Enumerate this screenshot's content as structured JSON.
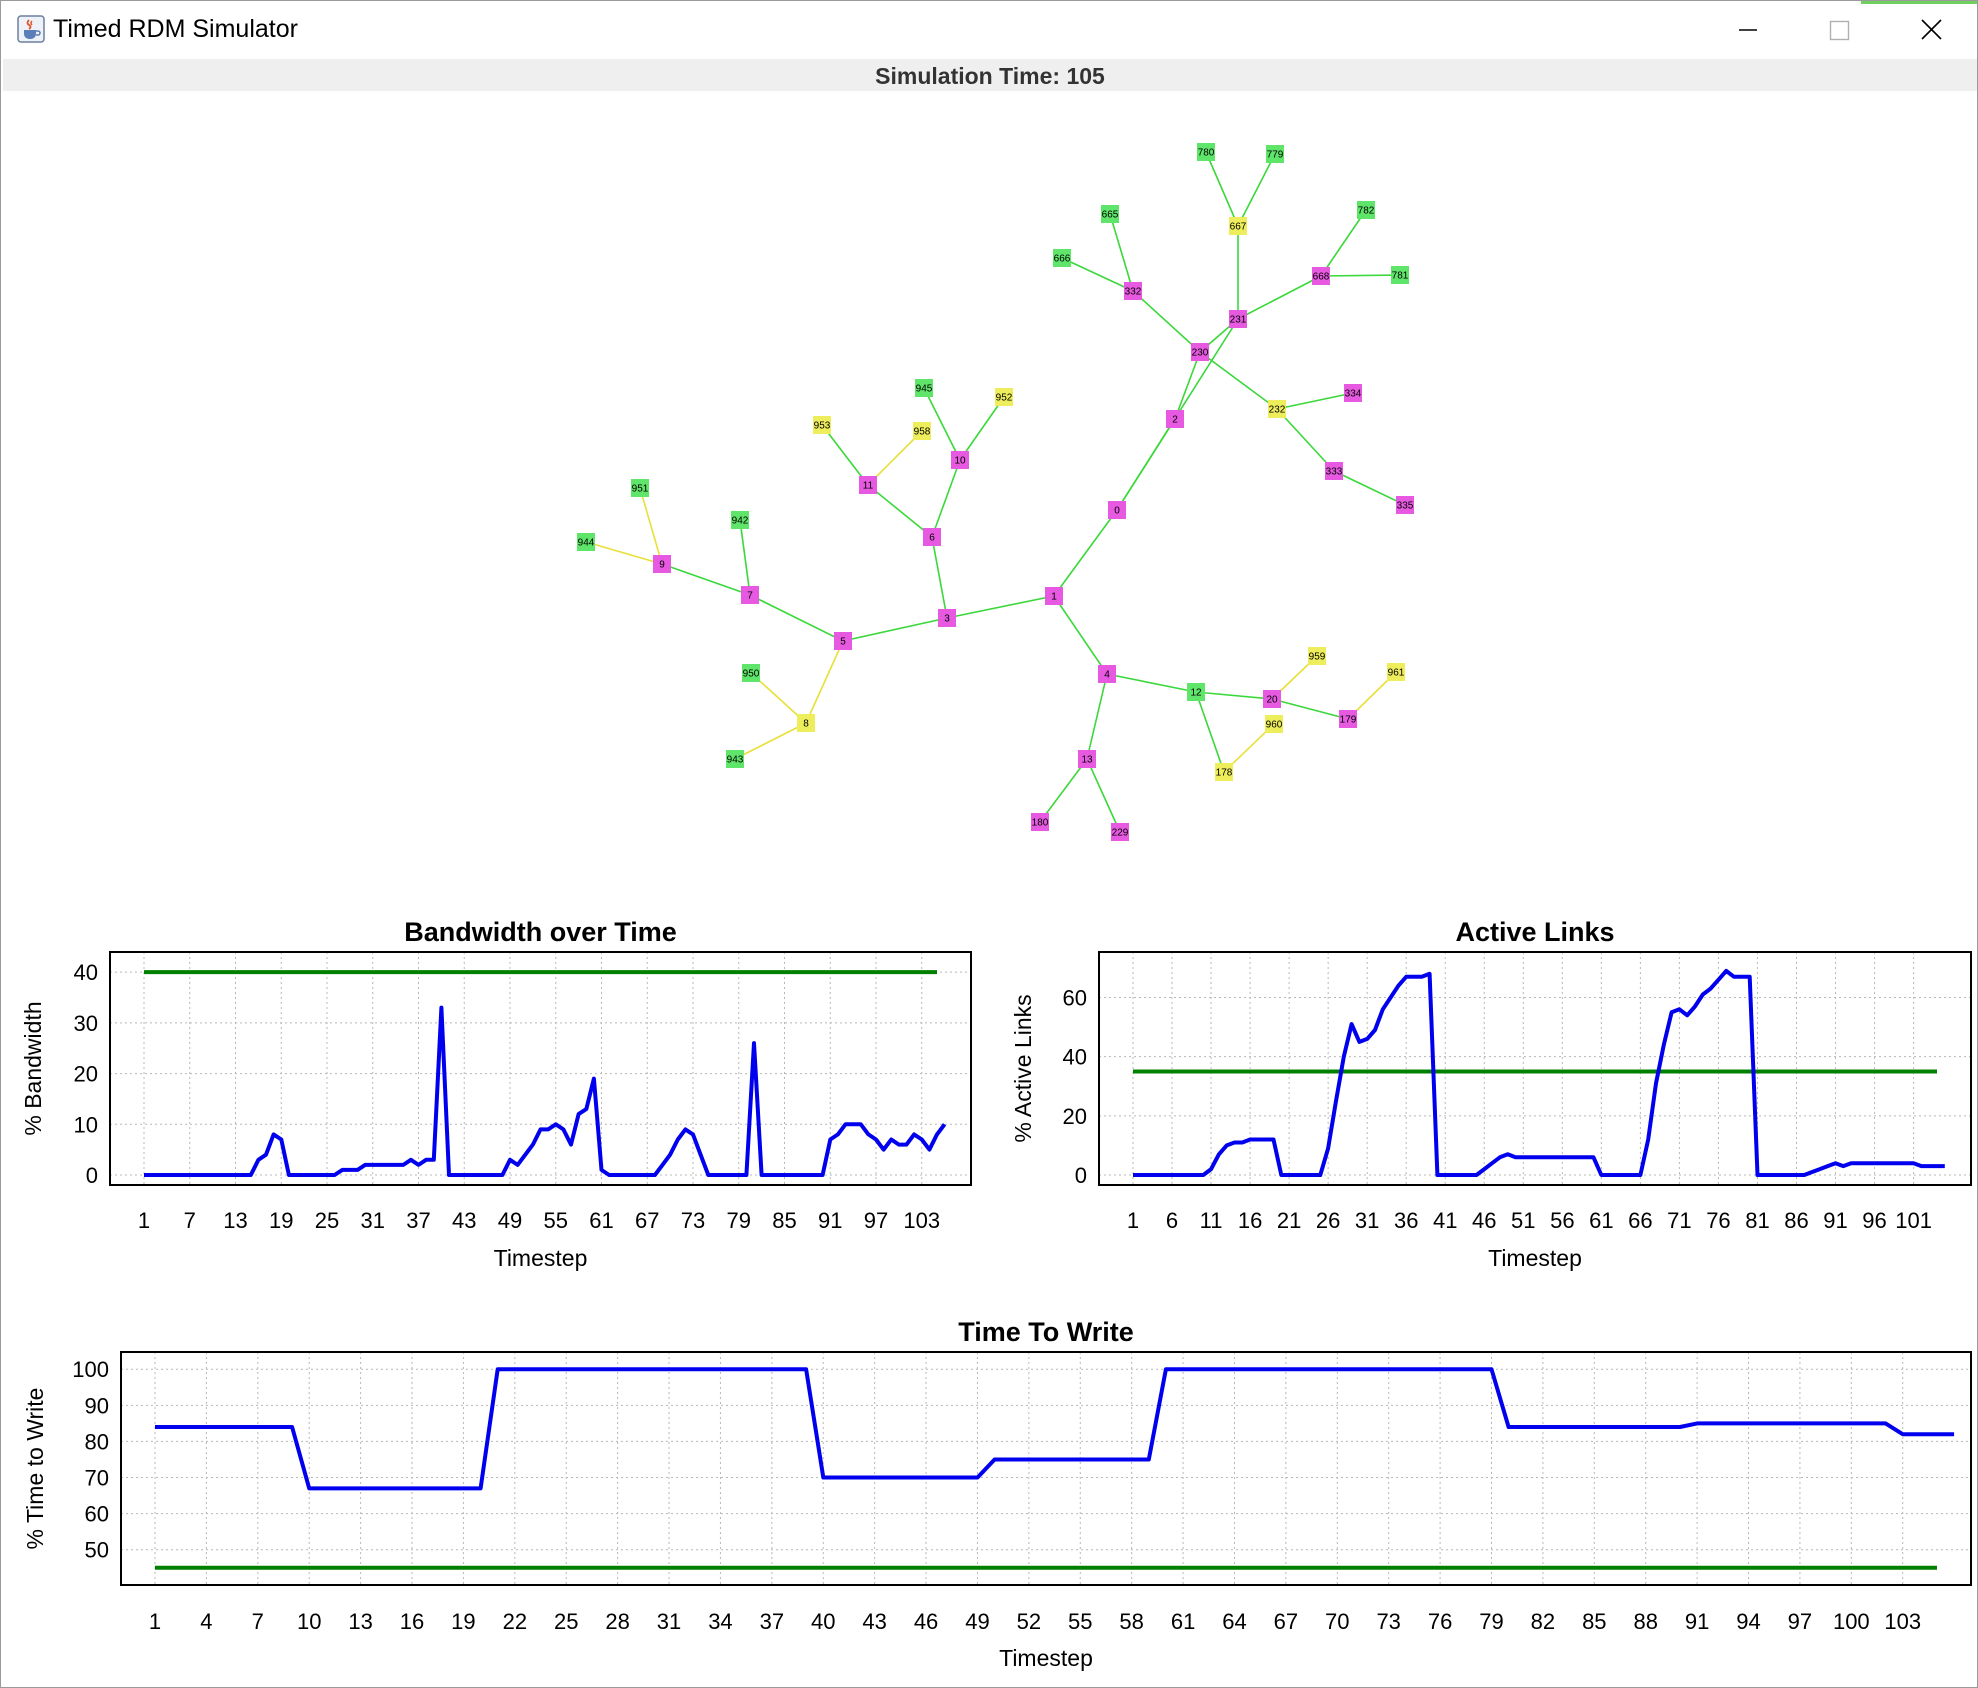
{
  "window": {
    "title": "Timed RDM Simulator",
    "status": "Simulation Time: 105",
    "icon": "java-cup-icon",
    "controls": [
      "minimize-icon",
      "maximize-icon",
      "close-icon"
    ]
  },
  "colors": {
    "node_magenta": "#e659e0",
    "node_green": "#5fe56a",
    "node_yellow": "#eeee5c",
    "edge_green": "#3ad83a",
    "edge_yellow": "#e8e03a",
    "series_blue": "#0000ee",
    "threshold_green": "#008000"
  },
  "network": {
    "nodes": [
      {
        "id": "780",
        "color": "green"
      },
      {
        "id": "779",
        "color": "green"
      },
      {
        "id": "667",
        "color": "yellow"
      },
      {
        "id": "665",
        "color": "green"
      },
      {
        "id": "782",
        "color": "green"
      },
      {
        "id": "666",
        "color": "green"
      },
      {
        "id": "332",
        "color": "magenta"
      },
      {
        "id": "668",
        "color": "magenta"
      },
      {
        "id": "781",
        "color": "green"
      },
      {
        "id": "231",
        "color": "magenta"
      },
      {
        "id": "230",
        "color": "magenta"
      },
      {
        "id": "945",
        "color": "green"
      },
      {
        "id": "952",
        "color": "yellow"
      },
      {
        "id": "232",
        "color": "yellow"
      },
      {
        "id": "334",
        "color": "magenta"
      },
      {
        "id": "953",
        "color": "yellow"
      },
      {
        "id": "958",
        "color": "yellow"
      },
      {
        "id": "2",
        "color": "magenta"
      },
      {
        "id": "10",
        "color": "magenta"
      },
      {
        "id": "333",
        "color": "magenta"
      },
      {
        "id": "951",
        "color": "green"
      },
      {
        "id": "11",
        "color": "magenta"
      },
      {
        "id": "335",
        "color": "magenta"
      },
      {
        "id": "0",
        "color": "magenta"
      },
      {
        "id": "942",
        "color": "green"
      },
      {
        "id": "944",
        "color": "green"
      },
      {
        "id": "6",
        "color": "magenta"
      },
      {
        "id": "9",
        "color": "magenta"
      },
      {
        "id": "7",
        "color": "magenta"
      },
      {
        "id": "1",
        "color": "magenta"
      },
      {
        "id": "3",
        "color": "magenta"
      },
      {
        "id": "5",
        "color": "magenta"
      },
      {
        "id": "959",
        "color": "yellow"
      },
      {
        "id": "950",
        "color": "green"
      },
      {
        "id": "961",
        "color": "yellow"
      },
      {
        "id": "4",
        "color": "magenta"
      },
      {
        "id": "12",
        "color": "green"
      },
      {
        "id": "20",
        "color": "magenta"
      },
      {
        "id": "960",
        "color": "yellow"
      },
      {
        "id": "179",
        "color": "magenta"
      },
      {
        "id": "8",
        "color": "yellow"
      },
      {
        "id": "943",
        "color": "green"
      },
      {
        "id": "13",
        "color": "magenta"
      },
      {
        "id": "178",
        "color": "yellow"
      },
      {
        "id": "180",
        "color": "magenta"
      },
      {
        "id": "229",
        "color": "magenta"
      }
    ],
    "edges": [
      {
        "from": "780",
        "to": "667",
        "color": "green"
      },
      {
        "from": "779",
        "to": "667",
        "color": "green"
      },
      {
        "from": "667",
        "to": "231",
        "color": "green"
      },
      {
        "from": "665",
        "to": "332",
        "color": "green"
      },
      {
        "from": "666",
        "to": "332",
        "color": "green"
      },
      {
        "from": "332",
        "to": "230",
        "color": "green"
      },
      {
        "from": "782",
        "to": "668",
        "color": "green"
      },
      {
        "from": "668",
        "to": "781",
        "color": "green"
      },
      {
        "from": "668",
        "to": "231",
        "color": "green"
      },
      {
        "from": "231",
        "to": "230",
        "color": "green"
      },
      {
        "from": "230",
        "to": "2",
        "color": "green"
      },
      {
        "from": "230",
        "to": "232",
        "color": "green"
      },
      {
        "from": "231",
        "to": "0",
        "color": "green"
      },
      {
        "from": "232",
        "to": "334",
        "color": "green"
      },
      {
        "from": "232",
        "to": "333",
        "color": "green"
      },
      {
        "from": "333",
        "to": "335",
        "color": "green"
      },
      {
        "from": "2",
        "to": "0",
        "color": "green"
      },
      {
        "from": "0",
        "to": "1",
        "color": "green"
      },
      {
        "from": "945",
        "to": "10",
        "color": "green"
      },
      {
        "from": "952",
        "to": "10",
        "color": "green"
      },
      {
        "from": "10",
        "to": "6",
        "color": "green"
      },
      {
        "from": "953",
        "to": "11",
        "color": "green"
      },
      {
        "from": "958",
        "to": "11",
        "color": "yellow"
      },
      {
        "from": "11",
        "to": "6",
        "color": "green"
      },
      {
        "from": "6",
        "to": "3",
        "color": "green"
      },
      {
        "from": "3",
        "to": "1",
        "color": "green"
      },
      {
        "from": "3",
        "to": "5",
        "color": "green"
      },
      {
        "from": "951",
        "to": "9",
        "color": "yellow"
      },
      {
        "from": "944",
        "to": "9",
        "color": "yellow"
      },
      {
        "from": "9",
        "to": "7",
        "color": "green"
      },
      {
        "from": "942",
        "to": "7",
        "color": "green"
      },
      {
        "from": "7",
        "to": "5",
        "color": "green"
      },
      {
        "from": "5",
        "to": "8",
        "color": "yellow"
      },
      {
        "from": "950",
        "to": "8",
        "color": "yellow"
      },
      {
        "from": "943",
        "to": "8",
        "color": "yellow"
      },
      {
        "from": "1",
        "to": "4",
        "color": "green"
      },
      {
        "from": "4",
        "to": "12",
        "color": "green"
      },
      {
        "from": "4",
        "to": "13",
        "color": "green"
      },
      {
        "from": "13",
        "to": "180",
        "color": "green"
      },
      {
        "from": "13",
        "to": "229",
        "color": "green"
      },
      {
        "from": "12",
        "to": "20",
        "color": "green"
      },
      {
        "from": "12",
        "to": "178",
        "color": "green"
      },
      {
        "from": "178",
        "to": "960",
        "color": "yellow"
      },
      {
        "from": "20",
        "to": "959",
        "color": "yellow"
      },
      {
        "from": "20",
        "to": "179",
        "color": "green"
      },
      {
        "from": "179",
        "to": "961",
        "color": "yellow"
      }
    ]
  },
  "chart_data": [
    {
      "id": "bandwidth",
      "type": "line",
      "title": "Bandwidth over Time",
      "xlabel": "Timestep",
      "ylabel": "% Bandwidth",
      "xlim": [
        1,
        105
      ],
      "ylim": [
        0,
        42
      ],
      "x_ticks": [
        1,
        7,
        13,
        19,
        25,
        31,
        37,
        43,
        49,
        55,
        61,
        67,
        73,
        79,
        85,
        91,
        97,
        103
      ],
      "y_ticks": [
        0,
        10,
        20,
        30,
        40
      ],
      "grid": true,
      "series": [
        {
          "values": [
            0,
            0,
            0,
            0,
            0,
            0,
            0,
            0,
            0,
            0,
            0,
            0,
            0,
            0,
            0,
            3,
            4,
            8,
            7,
            0,
            0,
            0,
            0,
            0,
            0,
            0,
            1,
            1,
            1,
            2,
            2,
            2,
            2,
            2,
            2,
            3,
            2,
            3,
            3,
            33,
            0,
            0,
            0,
            0,
            0,
            0,
            0,
            0,
            3,
            2,
            4,
            6,
            9,
            9,
            10,
            9,
            6,
            12,
            13,
            19,
            1,
            0,
            0,
            0,
            0,
            0,
            0,
            0,
            2,
            4,
            7,
            9,
            8,
            4,
            0,
            0,
            0,
            0,
            0,
            0,
            26,
            0,
            0,
            0,
            0,
            0,
            0,
            0,
            0,
            0,
            7,
            8,
            10,
            10,
            10,
            8,
            7,
            5,
            7,
            6,
            6,
            8,
            7,
            5,
            8,
            10
          ]
        }
      ],
      "threshold": 40
    },
    {
      "id": "active-links",
      "type": "line",
      "title": "Active Links",
      "xlabel": "Timestep",
      "ylabel": "% Active Links",
      "xlim": [
        1,
        104
      ],
      "ylim": [
        0,
        72
      ],
      "x_ticks": [
        1,
        6,
        11,
        16,
        21,
        26,
        31,
        36,
        41,
        46,
        51,
        56,
        61,
        66,
        71,
        76,
        81,
        86,
        91,
        96,
        101
      ],
      "y_ticks": [
        0,
        20,
        40,
        60
      ],
      "grid": true,
      "series": [
        {
          "values": [
            0,
            0,
            0,
            0,
            0,
            0,
            0,
            0,
            0,
            0,
            2,
            7,
            10,
            11,
            11,
            12,
            12,
            12,
            12,
            0,
            0,
            0,
            0,
            0,
            0,
            9,
            25,
            40,
            51,
            45,
            46,
            49,
            56,
            60,
            64,
            67,
            67,
            67,
            68,
            0,
            0,
            0,
            0,
            0,
            0,
            2,
            4,
            6,
            7,
            6,
            6,
            6,
            6,
            6,
            6,
            6,
            6,
            6,
            6,
            6,
            0,
            0,
            0,
            0,
            0,
            0,
            12,
            31,
            44,
            55,
            56,
            54,
            57,
            61,
            63,
            66,
            69,
            67,
            67,
            67,
            0,
            0,
            0,
            0,
            0,
            0,
            0,
            1,
            2,
            3,
            4,
            3,
            4,
            4,
            4,
            4,
            4,
            4,
            4,
            4,
            4,
            3,
            3,
            3,
            3
          ]
        }
      ],
      "threshold": 35
    },
    {
      "id": "time-to-write",
      "type": "line",
      "title": "Time To Write",
      "xlabel": "Timestep",
      "ylabel": "% Time to Write",
      "xlim": [
        1,
        105
      ],
      "ylim": [
        43,
        102
      ],
      "x_ticks": [
        1,
        4,
        7,
        10,
        13,
        16,
        19,
        22,
        25,
        28,
        31,
        34,
        37,
        40,
        43,
        46,
        49,
        52,
        55,
        58,
        61,
        64,
        67,
        70,
        73,
        76,
        79,
        82,
        85,
        88,
        91,
        94,
        97,
        100,
        103
      ],
      "y_ticks": [
        50,
        60,
        70,
        80,
        90,
        100
      ],
      "grid": true,
      "series": [
        {
          "values": [
            84,
            84,
            84,
            84,
            84,
            84,
            84,
            84,
            84,
            67,
            67,
            67,
            67,
            67,
            67,
            67,
            67,
            67,
            67,
            67,
            100,
            100,
            100,
            100,
            100,
            100,
            100,
            100,
            100,
            100,
            100,
            100,
            100,
            100,
            100,
            100,
            100,
            100,
            100,
            70,
            70,
            70,
            70,
            70,
            70,
            70,
            70,
            70,
            70,
            75,
            75,
            75,
            75,
            75,
            75,
            75,
            75,
            75,
            75,
            100,
            100,
            100,
            100,
            100,
            100,
            100,
            100,
            100,
            100,
            100,
            100,
            100,
            100,
            100,
            100,
            100,
            100,
            100,
            100,
            84,
            84,
            84,
            84,
            84,
            84,
            84,
            84,
            84,
            84,
            84,
            85,
            85,
            85,
            85,
            85,
            85,
            85,
            85,
            85,
            85,
            85,
            85,
            82,
            82,
            82,
            82
          ]
        }
      ],
      "threshold": 45
    }
  ]
}
